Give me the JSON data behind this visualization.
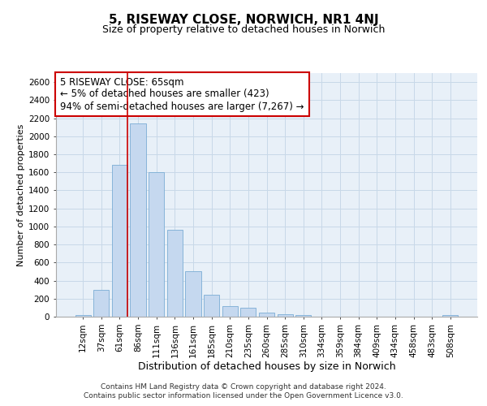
{
  "title": "5, RISEWAY CLOSE, NORWICH, NR1 4NJ",
  "subtitle": "Size of property relative to detached houses in Norwich",
  "xlabel": "Distribution of detached houses by size in Norwich",
  "ylabel": "Number of detached properties",
  "categories": [
    "12sqm",
    "37sqm",
    "61sqm",
    "86sqm",
    "111sqm",
    "136sqm",
    "161sqm",
    "185sqm",
    "210sqm",
    "235sqm",
    "260sqm",
    "285sqm",
    "310sqm",
    "334sqm",
    "359sqm",
    "384sqm",
    "409sqm",
    "434sqm",
    "458sqm",
    "483sqm",
    "508sqm"
  ],
  "values": [
    20,
    300,
    1680,
    2140,
    1600,
    960,
    500,
    245,
    120,
    100,
    45,
    28,
    18,
    0,
    0,
    0,
    0,
    0,
    0,
    0,
    20
  ],
  "bar_color": "#c5d8ef",
  "bar_edge_color": "#7aadd4",
  "vline_color": "#cc0000",
  "annotation_text": "5 RISEWAY CLOSE: 65sqm\n← 5% of detached houses are smaller (423)\n94% of semi-detached houses are larger (7,267) →",
  "annotation_box_edge_color": "#cc0000",
  "annotation_box_bg": "#ffffff",
  "ylim_max": 2700,
  "yticks": [
    0,
    200,
    400,
    600,
    800,
    1000,
    1200,
    1400,
    1600,
    1800,
    2000,
    2200,
    2400,
    2600
  ],
  "grid_color": "#c8d8e8",
  "plot_bg_color": "#e8f0f8",
  "title_fontsize": 11,
  "subtitle_fontsize": 9,
  "ylabel_fontsize": 8,
  "xlabel_fontsize": 9,
  "tick_fontsize": 7.5,
  "ytick_fontsize": 7.5,
  "footer_fontsize": 6.5,
  "annot_fontsize": 8.5,
  "footer": "Contains HM Land Registry data © Crown copyright and database right 2024.\nContains public sector information licensed under the Open Government Licence v3.0."
}
